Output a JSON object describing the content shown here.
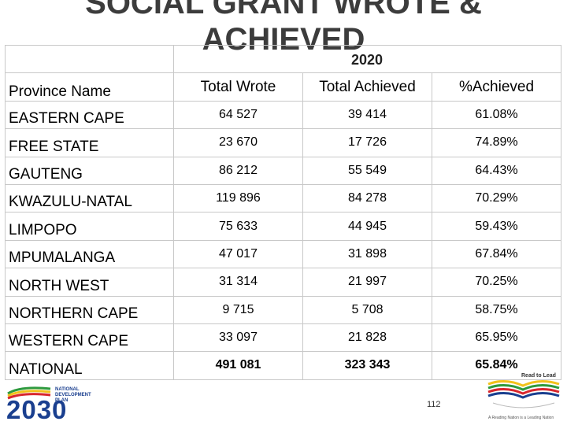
{
  "title": {
    "line1": "SOCIAL GRANT WROTE &",
    "line2": "ACHIEVED",
    "year": "2020"
  },
  "table": {
    "headers": {
      "province": "Province Name",
      "wrote": "Total Wrote",
      "achieved": "Total Achieved",
      "pct": "%Achieved"
    },
    "rows": [
      {
        "province": "EASTERN CAPE",
        "wrote": "64 527",
        "achieved": "39 414",
        "pct": "61.08%"
      },
      {
        "province": "FREE STATE",
        "wrote": "23 670",
        "achieved": "17 726",
        "pct": "74.89%"
      },
      {
        "province": "GAUTENG",
        "wrote": "86 212",
        "achieved": "55 549",
        "pct": "64.43%"
      },
      {
        "province": "KWAZULU-NATAL",
        "wrote": "119 896",
        "achieved": "84 278",
        "pct": "70.29%"
      },
      {
        "province": "LIMPOPO",
        "wrote": "75 633",
        "achieved": "44 945",
        "pct": "59.43%"
      },
      {
        "province": "MPUMALANGA",
        "wrote": "47 017",
        "achieved": "31 898",
        "pct": "67.84%"
      },
      {
        "province": "NORTH WEST",
        "wrote": "31 314",
        "achieved": "21 997",
        "pct": "70.25%"
      },
      {
        "province": "NORTHERN CAPE",
        "wrote": "9 715",
        "achieved": "5 708",
        "pct": "58.75%"
      },
      {
        "province": "WESTERN CAPE",
        "wrote": "33 097",
        "achieved": "21 828",
        "pct": "65.95%"
      },
      {
        "province": "NATIONAL",
        "wrote": "491 081",
        "achieved": "323 343",
        "pct": "65.84%"
      }
    ]
  },
  "footer": {
    "ndp_logo": {
      "line1": "NATIONAL",
      "line2": "DEVELOPMENT",
      "line3": "PLAN",
      "year": "2030"
    },
    "page_number": "112",
    "read_to_lead": {
      "title": "Read to Lead",
      "tagline": "A Reading Nation is a Leading Nation"
    }
  },
  "colors": {
    "title": "#3c3c3c",
    "border": "#c8c8c8",
    "ndp_blue": "#1a3f8f",
    "ndp_green": "#2e9a3e",
    "ndp_yellow": "#f2c21b",
    "ndp_red": "#d8262d"
  }
}
